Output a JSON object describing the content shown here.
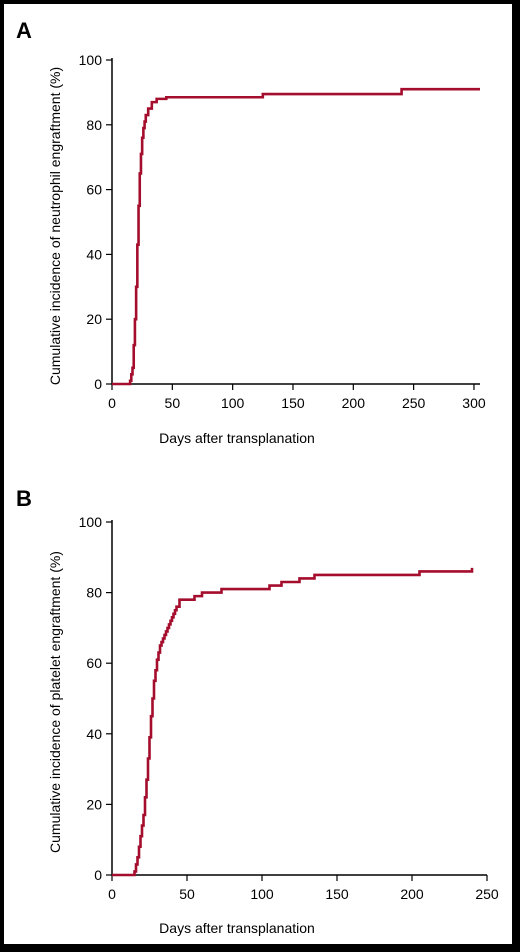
{
  "style": {
    "line_color": "#a50d2d",
    "axis_color": "#000000",
    "background": "#ffffff",
    "frame_color": "#000000"
  },
  "chart_data": [
    {
      "type": "line",
      "panel_label": "A",
      "xlabel": "Days after transplanation",
      "ylabel": "Cumulative incidence of neutrophil engraftment (%)",
      "xlim": [
        0,
        305
      ],
      "ylim": [
        0,
        100
      ],
      "xticks": [
        0,
        50,
        100,
        150,
        200,
        250,
        300
      ],
      "yticks": [
        0,
        20,
        40,
        60,
        80,
        100
      ],
      "grid": false,
      "step": true,
      "series": [
        {
          "x": [
            0,
            14,
            15,
            16,
            17,
            18,
            19,
            20,
            21,
            22,
            23,
            24,
            25,
            26,
            27,
            28,
            30,
            33,
            37,
            45,
            125,
            240,
            305
          ],
          "y": [
            0,
            0,
            1,
            3,
            5,
            12,
            20,
            30,
            43,
            55,
            65,
            71,
            76,
            79,
            81,
            83,
            85,
            87,
            88,
            88.5,
            89.5,
            91,
            91
          ]
        }
      ]
    },
    {
      "type": "line",
      "panel_label": "B",
      "xlabel": "Days after transplanation",
      "ylabel": "Cumulative incidence of platelet engraftment (%)",
      "xlim": [
        0,
        250
      ],
      "ylim": [
        0,
        100
      ],
      "xticks": [
        0,
        50,
        100,
        150,
        200,
        250
      ],
      "yticks": [
        0,
        20,
        40,
        60,
        80,
        100
      ],
      "grid": false,
      "step": true,
      "series": [
        {
          "x": [
            0,
            14,
            15,
            16,
            17,
            18,
            19,
            20,
            21,
            22,
            23,
            24,
            25,
            26,
            27,
            28,
            29,
            30,
            31,
            32,
            33,
            34,
            35,
            36,
            37,
            38,
            39,
            40,
            41,
            42,
            43,
            45,
            50,
            55,
            60,
            73,
            105,
            113,
            125,
            135,
            205,
            240
          ],
          "y": [
            0,
            0,
            1,
            3,
            5,
            8,
            11,
            14,
            17,
            22,
            27,
            33,
            39,
            45,
            50,
            55,
            58,
            61,
            63,
            65,
            66,
            67,
            68,
            69,
            70,
            71,
            72,
            73,
            74,
            75,
            76,
            78,
            78,
            79,
            80,
            81,
            82,
            83,
            84,
            85,
            86,
            87
          ]
        }
      ]
    }
  ]
}
